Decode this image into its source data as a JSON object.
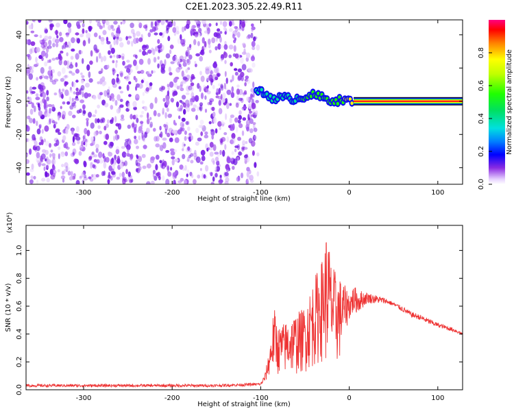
{
  "title": "C2E1.2023.305.22.49.R11",
  "chart_data": [
    {
      "type": "heatmap",
      "xlabel": "Height of straight line (km)",
      "ylabel": "Frequency (Hz)",
      "xlim": [
        -365,
        128
      ],
      "ylim": [
        -50,
        49
      ],
      "xticks": [
        -300,
        -200,
        -100,
        0,
        100
      ],
      "yticks": [
        -40,
        -20,
        0,
        20,
        40
      ],
      "colorbar": {
        "label": "Normalized spectral amplitude",
        "range": [
          0,
          1
        ],
        "ticks": [
          0.0,
          0.2,
          0.4,
          0.6,
          0.8
        ]
      },
      "noise_region_x": [
        -365,
        -103
      ],
      "signal_track": [
        {
          "x": -105,
          "freq": 7,
          "amp": 0.45
        },
        {
          "x": -95,
          "freq": 4,
          "amp": 0.4
        },
        {
          "x": -85,
          "freq": 2,
          "amp": 0.45
        },
        {
          "x": -75,
          "freq": 2,
          "amp": 0.4
        },
        {
          "x": -65,
          "freq": 1.5,
          "amp": 0.45
        },
        {
          "x": -55,
          "freq": 2,
          "amp": 0.5
        },
        {
          "x": -45,
          "freq": 4,
          "amp": 0.55
        },
        {
          "x": -35,
          "freq": 3,
          "amp": 0.55
        },
        {
          "x": -25,
          "freq": 1,
          "amp": 0.6
        },
        {
          "x": -15,
          "freq": 0.5,
          "amp": 0.65
        },
        {
          "x": -5,
          "freq": 0.5,
          "amp": 0.7
        },
        {
          "x": 5,
          "freq": 0,
          "amp": 0.85
        },
        {
          "x": 128,
          "freq": 0,
          "amp": 1.0
        }
      ]
    },
    {
      "type": "line",
      "xlabel": "Height of straight line (km)",
      "ylabel": "SNR (10 * v/v)",
      "exponent_label": "(x10⁴)",
      "xlim": [
        -365,
        128
      ],
      "ylim": [
        0,
        1.18
      ],
      "xticks": [
        -300,
        -200,
        -100,
        0,
        100
      ],
      "yticks": [
        0.0,
        0.2,
        0.4,
        0.6,
        0.8,
        1.0
      ],
      "series": [
        {
          "color": "#ee3333",
          "envelope": {
            "x": [
              -365,
              -300,
              -200,
              -150,
              -100,
              -95,
              -90,
              -85,
              -80,
              -70,
              -60,
              -50,
              -40,
              -30,
              -25,
              -20,
              -15,
              -10,
              -5,
              0,
              5,
              10,
              20,
              30,
              40,
              50,
              60,
              70,
              80,
              90,
              100,
              110,
              120,
              128
            ],
            "low": [
              0.02,
              0.02,
              0.02,
              0.02,
              0.03,
              0.05,
              0.1,
              0.12,
              0.1,
              0.1,
              0.1,
              0.12,
              0.15,
              0.2,
              0.15,
              0.2,
              0.15,
              0.2,
              0.4,
              0.5,
              0.55,
              0.55,
              0.62,
              0.62,
              0.62,
              0.6,
              0.56,
              0.52,
              0.5,
              0.47,
              0.45,
              0.43,
              0.41,
              0.39
            ],
            "high": [
              0.04,
              0.04,
              0.04,
              0.04,
              0.05,
              0.12,
              0.3,
              0.6,
              0.45,
              0.5,
              0.55,
              0.6,
              0.8,
              0.95,
              1.18,
              0.9,
              0.85,
              0.8,
              0.75,
              0.7,
              0.75,
              0.72,
              0.7,
              0.68,
              0.66,
              0.63,
              0.6,
              0.56,
              0.54,
              0.51,
              0.48,
              0.46,
              0.44,
              0.41
            ]
          }
        }
      ]
    }
  ]
}
